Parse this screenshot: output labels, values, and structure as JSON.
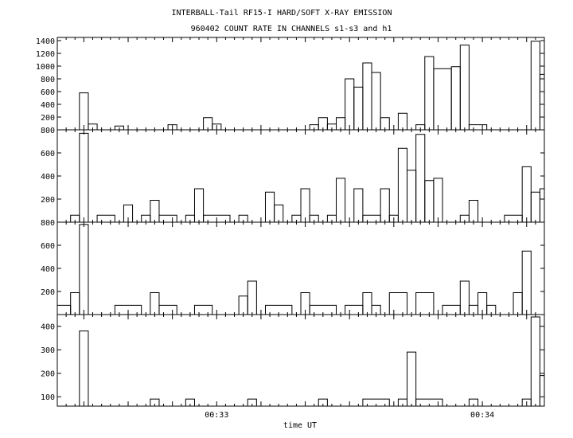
{
  "chart_data": {
    "type": "bar",
    "title": "INTERBALL-Tail RF15-I HARD/SOFT X-RAY EMISSION",
    "subtitle": "960402  COUNT RATE IN CHANNELS s1-s3 and h1",
    "xlabel": "time UT",
    "x_tick_labels": [
      "00:33",
      "00:34"
    ],
    "x_range_seconds_after_0032": [
      24,
      134
    ],
    "x_tick_values_seconds_after_0032": [
      60,
      120
    ],
    "panels": [
      {
        "ylim": [
          0,
          1450
        ],
        "yticks": [
          200,
          400,
          600,
          800,
          1000,
          1200,
          1400
        ],
        "bars": [
          [
            29,
            31,
            580
          ],
          [
            31,
            33,
            90
          ],
          [
            37,
            39,
            60
          ],
          [
            49,
            51,
            80
          ],
          [
            57,
            59,
            190
          ],
          [
            59,
            61,
            90
          ],
          [
            81,
            83,
            80
          ],
          [
            83,
            85,
            190
          ],
          [
            85,
            87,
            90
          ],
          [
            87,
            89,
            190
          ],
          [
            89,
            91,
            800
          ],
          [
            91,
            93,
            670
          ],
          [
            93,
            95,
            1050
          ],
          [
            95,
            97,
            900
          ],
          [
            97,
            99,
            190
          ],
          [
            101,
            103,
            260
          ],
          [
            105,
            107,
            80
          ],
          [
            107,
            109,
            1150
          ],
          [
            109,
            113,
            960
          ],
          [
            113,
            115,
            990
          ],
          [
            115,
            117,
            1330
          ],
          [
            117,
            121,
            80
          ],
          [
            131,
            133,
            1390
          ],
          [
            133,
            134,
            870
          ]
        ]
      },
      {
        "ylim": [
          0,
          800
        ],
        "yticks": [
          200,
          400,
          600,
          800
        ],
        "bars": [
          [
            27,
            29,
            60
          ],
          [
            29,
            31,
            770
          ],
          [
            33,
            37,
            60
          ],
          [
            39,
            41,
            150
          ],
          [
            43,
            45,
            60
          ],
          [
            45,
            47,
            190
          ],
          [
            47,
            51,
            60
          ],
          [
            53,
            55,
            60
          ],
          [
            55,
            57,
            290
          ],
          [
            57,
            63,
            60
          ],
          [
            65,
            67,
            60
          ],
          [
            71,
            73,
            260
          ],
          [
            73,
            75,
            150
          ],
          [
            77,
            79,
            60
          ],
          [
            79,
            81,
            290
          ],
          [
            81,
            83,
            60
          ],
          [
            85,
            87,
            60
          ],
          [
            87,
            89,
            380
          ],
          [
            91,
            93,
            290
          ],
          [
            93,
            97,
            60
          ],
          [
            97,
            99,
            290
          ],
          [
            99,
            101,
            60
          ],
          [
            101,
            103,
            640
          ],
          [
            103,
            105,
            450
          ],
          [
            105,
            107,
            760
          ],
          [
            107,
            109,
            360
          ],
          [
            109,
            111,
            380
          ],
          [
            115,
            117,
            60
          ],
          [
            117,
            119,
            190
          ],
          [
            125,
            129,
            60
          ],
          [
            129,
            131,
            480
          ],
          [
            131,
            133,
            260
          ],
          [
            133,
            134,
            290
          ]
        ]
      },
      {
        "ylim": [
          0,
          800
        ],
        "yticks": [
          200,
          400,
          600,
          800
        ],
        "bars": [
          [
            24,
            27,
            80
          ],
          [
            27,
            29,
            190
          ],
          [
            29,
            31,
            780
          ],
          [
            37,
            43,
            80
          ],
          [
            45,
            47,
            190
          ],
          [
            47,
            51,
            80
          ],
          [
            55,
            59,
            80
          ],
          [
            65,
            67,
            160
          ],
          [
            67,
            69,
            290
          ],
          [
            71,
            77,
            80
          ],
          [
            79,
            81,
            190
          ],
          [
            81,
            87,
            80
          ],
          [
            89,
            93,
            80
          ],
          [
            93,
            95,
            190
          ],
          [
            95,
            97,
            80
          ],
          [
            99,
            103,
            190
          ],
          [
            105,
            109,
            190
          ],
          [
            111,
            115,
            80
          ],
          [
            115,
            117,
            290
          ],
          [
            117,
            119,
            80
          ],
          [
            119,
            121,
            190
          ],
          [
            121,
            123,
            80
          ],
          [
            127,
            129,
            190
          ],
          [
            129,
            131,
            550
          ]
        ]
      },
      {
        "ylim": [
          60,
          450
        ],
        "yticks": [
          100,
          200,
          300,
          400
        ],
        "bars": [
          [
            29,
            31,
            380
          ],
          [
            45,
            47,
            90
          ],
          [
            53,
            55,
            90
          ],
          [
            67,
            69,
            90
          ],
          [
            83,
            85,
            90
          ],
          [
            93,
            99,
            90
          ],
          [
            101,
            103,
            90
          ],
          [
            103,
            105,
            290
          ],
          [
            105,
            111,
            90
          ],
          [
            117,
            119,
            90
          ],
          [
            129,
            131,
            90
          ],
          [
            131,
            133,
            440
          ],
          [
            133,
            134,
            190
          ]
        ]
      }
    ]
  }
}
